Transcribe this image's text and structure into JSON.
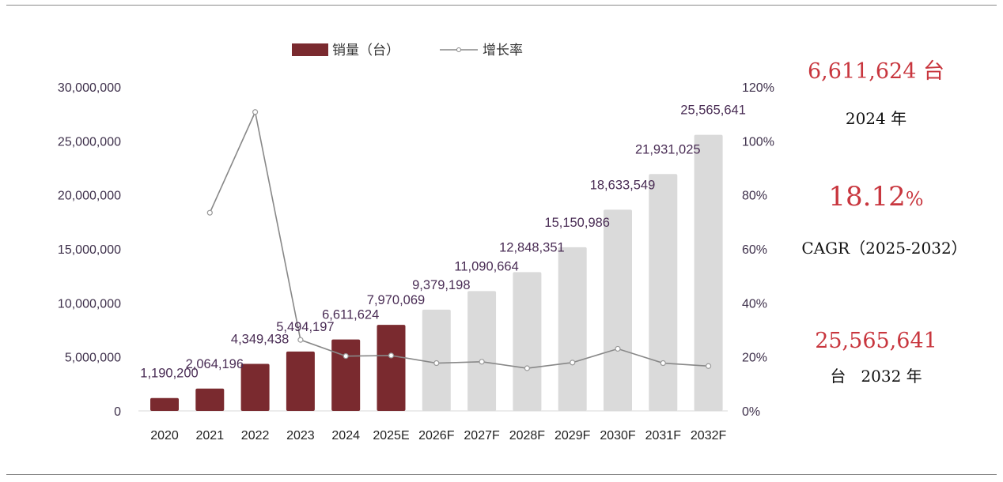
{
  "chart_data": {
    "type": "bar",
    "categories": [
      "2020",
      "2021",
      "2022",
      "2023",
      "2024",
      "2025E",
      "2026F",
      "2027F",
      "2028F",
      "2029F",
      "2030F",
      "2031F",
      "2032F"
    ],
    "series": [
      {
        "name": "销量（台）",
        "axis": "left",
        "values": [
          1190200,
          2064196,
          4349438,
          5494197,
          6611624,
          7970069,
          9379198,
          11090664,
          12848351,
          15150986,
          18633549,
          21931025,
          25565641
        ],
        "labels": [
          "1,190,200",
          "2,064,196",
          "4,349,438",
          "5,494,197",
          "6,611,624",
          "7,970,069",
          "9,379,198",
          "11,090,664",
          "12,848,351",
          "15,150,986",
          "18,633,549",
          "21,931,025",
          "25,565,641"
        ],
        "actual_color": "#7a2a2f",
        "forecast_color": "#dadada",
        "forecast_from_index": 6
      },
      {
        "name": "增长率",
        "type": "line",
        "axis": "right",
        "values": [
          null,
          73.4,
          110.7,
          26.3,
          20.3,
          20.5,
          17.7,
          18.2,
          15.8,
          17.9,
          23.0,
          17.7,
          16.6
        ],
        "color": "#888888"
      }
    ],
    "left_axis": {
      "ylim": [
        0,
        30000000
      ],
      "ticks": [
        "0",
        "5,000,000",
        "10,000,000",
        "15,000,000",
        "20,000,000",
        "25,000,000",
        "30,000,000"
      ]
    },
    "right_axis": {
      "ylim": [
        0,
        120
      ],
      "ticks": [
        "0%",
        "20%",
        "40%",
        "60%",
        "80%",
        "100%",
        "120%"
      ]
    },
    "grid": false,
    "legend_position": "top"
  },
  "legend": {
    "bar_label": "销量（台）",
    "line_label": "增长率"
  },
  "side_panel": {
    "value_2024": "6,611,624 台",
    "year_2024": "2024 年",
    "cagr_value": "18.12",
    "cagr_percent": "%",
    "cagr_label": "CAGR（2025-2032）",
    "value_2032": "25,565,641",
    "year_2032": "台   2032 年"
  }
}
